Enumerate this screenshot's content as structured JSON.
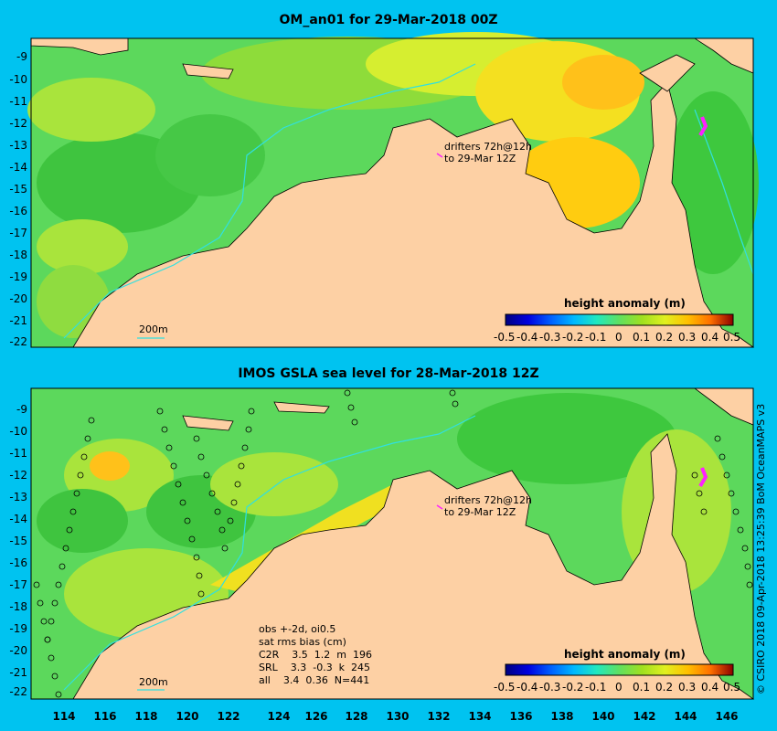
{
  "panels": [
    {
      "title": "OM_an01 for 29-Mar-2018 00Z",
      "drifter_line1": "drifters 72h@12h",
      "drifter_line2": "to 29-Mar 12Z",
      "isobath_label": "200m",
      "colorbar_title": "height anomaly (m)"
    },
    {
      "title": "IMOS GSLA sea level  for 28-Mar-2018 12Z",
      "drifter_line1": "drifters 72h@12h",
      "drifter_line2": "to 29-Mar 12Z",
      "isobath_label": "200m",
      "colorbar_title": "height anomaly (m)",
      "stats": {
        "line1": "obs +-2d, oi0.5",
        "line2": "sat rms bias (cm)",
        "line3": "C2R    3.5  1.2  m  196",
        "line4": "SRL    3.3  -0.3  k  245",
        "line5": "all    3.4  0.36  N=441"
      }
    }
  ],
  "y_ticks": [
    "-9",
    "-10",
    "-11",
    "-12",
    "-13",
    "-14",
    "-15",
    "-16",
    "-17",
    "-18",
    "-19",
    "-20",
    "-21",
    "-22"
  ],
  "x_ticks": [
    "114",
    "116",
    "118",
    "120",
    "122",
    "124",
    "126",
    "128",
    "130",
    "132",
    "134",
    "136",
    "138",
    "140",
    "142",
    "144",
    "146"
  ],
  "colorbar_ticks": [
    "-0.5",
    "-0.4",
    "-0.3",
    "-0.2",
    "-0.1",
    "0",
    "0.1",
    "0.2",
    "0.3",
    "0.4",
    "0.5"
  ],
  "colorbar_colors": [
    "#00007f",
    "#0000e0",
    "#0060ff",
    "#00b8ff",
    "#20e8c0",
    "#60e060",
    "#a0e020",
    "#e0f020",
    "#ffc000",
    "#ff7000",
    "#e01000",
    "#8b0000"
  ],
  "land_color": "#fdd0a4",
  "copyright": "© CSIRO 2018  09-Apr-2018 13:25:39 BoM OceanMAPS v3"
}
